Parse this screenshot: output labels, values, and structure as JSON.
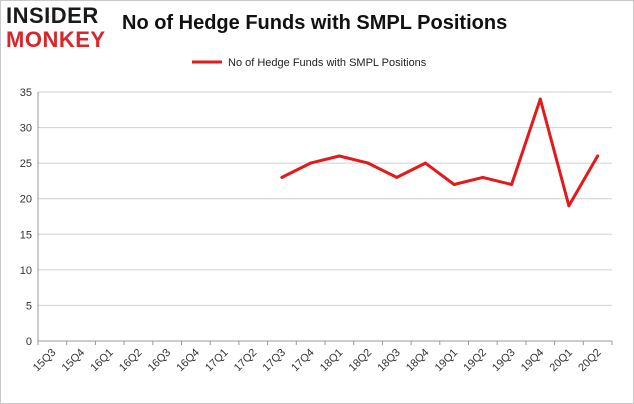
{
  "logo": {
    "line1": "INSIDER",
    "line2": "MONKEY"
  },
  "chart_data": {
    "type": "line",
    "title": "No of Hedge Funds with SMPL Positions",
    "xlabel": "",
    "ylabel": "",
    "categories": [
      "15Q3",
      "15Q4",
      "16Q1",
      "16Q2",
      "16Q3",
      "16Q4",
      "17Q1",
      "17Q2",
      "17Q3",
      "17Q4",
      "18Q1",
      "18Q2",
      "18Q3",
      "18Q4",
      "19Q1",
      "19Q2",
      "19Q3",
      "19Q4",
      "20Q1",
      "20Q2"
    ],
    "series": [
      {
        "name": "No of Hedge Funds with SMPL Positions",
        "values": [
          null,
          null,
          null,
          null,
          null,
          null,
          null,
          null,
          23,
          25,
          26,
          25,
          23,
          25,
          22,
          23,
          22,
          34,
          19,
          26
        ],
        "color": "#e31a1c"
      }
    ],
    "ylim": [
      0,
      35
    ],
    "yticks": [
      0,
      5,
      10,
      15,
      20,
      25,
      30,
      35
    ],
    "grid": true,
    "legend": "top-center"
  }
}
